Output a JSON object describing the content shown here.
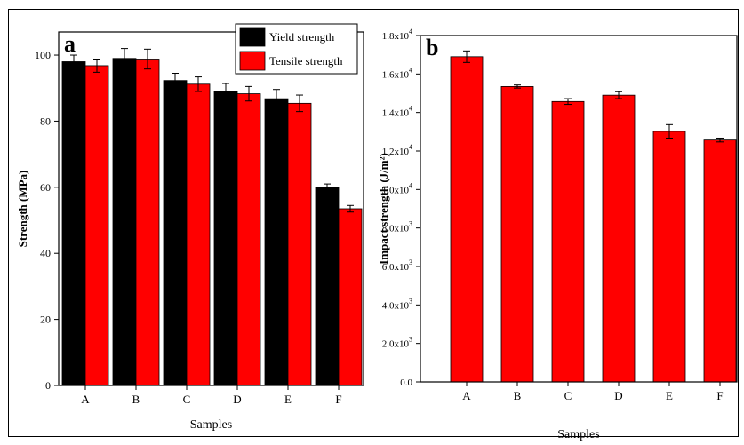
{
  "chart_data": [
    {
      "panel_label": "a",
      "type": "bar",
      "xlabel": "Samples",
      "ylabel": "Strength (MPa)",
      "ylim": [
        0,
        107
      ],
      "yticks": [
        0,
        20,
        40,
        60,
        80,
        100
      ],
      "categories": [
        "A",
        "B",
        "C",
        "D",
        "E",
        "F"
      ],
      "series": [
        {
          "name": "Yield strength",
          "color": "#000000",
          "values": [
            98.0,
            99.0,
            92.3,
            89.0,
            86.8,
            60.0
          ],
          "errors": [
            2.0,
            3.0,
            2.2,
            2.4,
            2.8,
            1.0
          ]
        },
        {
          "name": "Tensile strength",
          "color": "#ff0000",
          "values": [
            96.8,
            98.8,
            91.2,
            88.3,
            85.4,
            53.5
          ],
          "errors": [
            2.0,
            3.0,
            2.2,
            2.2,
            2.5,
            1.0
          ]
        }
      ],
      "legend": "top-right",
      "grid": false
    },
    {
      "panel_label": "b",
      "type": "bar",
      "xlabel": "Samples",
      "ylabel": "Impact strength (J/m²)",
      "ylim": [
        0,
        18000
      ],
      "yticks": [
        0,
        2000,
        4000,
        6000,
        8000,
        10000,
        12000,
        14000,
        16000,
        18000
      ],
      "ytick_labels": [
        {
          "mant": "0.0",
          "exp": ""
        },
        {
          "mant": "2.0x10",
          "exp": "3"
        },
        {
          "mant": "4.0x10",
          "exp": "3"
        },
        {
          "mant": "6.0x10",
          "exp": "3"
        },
        {
          "mant": "8.0x10",
          "exp": "3"
        },
        {
          "mant": "1.0x10",
          "exp": "4"
        },
        {
          "mant": "1.2x10",
          "exp": "4"
        },
        {
          "mant": "1.4x10",
          "exp": "4"
        },
        {
          "mant": "1.6x10",
          "exp": "4"
        },
        {
          "mant": "1.8x10",
          "exp": "4"
        }
      ],
      "categories": [
        "A",
        "B",
        "C",
        "D",
        "E",
        "F"
      ],
      "series": [
        {
          "color": "#ff0000",
          "values": [
            16900,
            15350,
            14570,
            14900,
            13020,
            12570
          ],
          "errors": [
            300,
            80,
            150,
            180,
            350,
            100
          ]
        }
      ],
      "grid": false
    }
  ]
}
